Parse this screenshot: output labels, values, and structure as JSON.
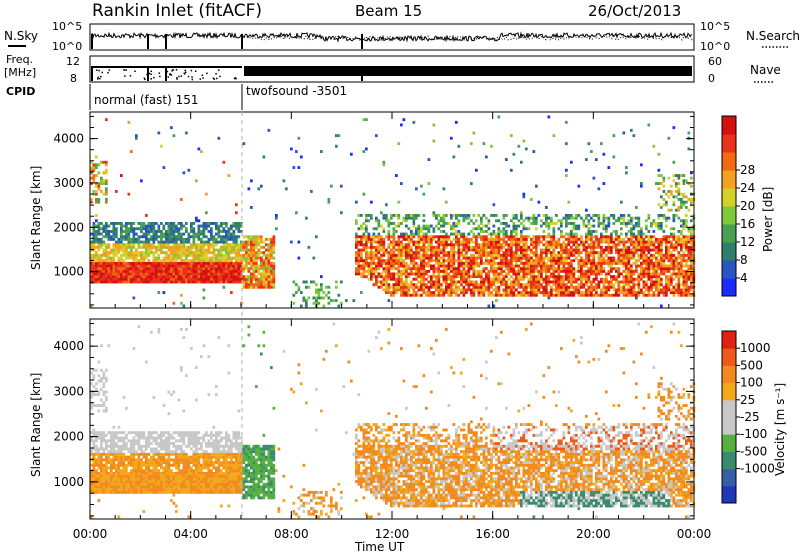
{
  "header": {
    "station": "Rankin Inlet (fitACF)",
    "beam": "Beam 15",
    "date": "26/Oct/2013"
  },
  "strip": {
    "left_top_label": "N.Sky",
    "left_mid_label_1": "Freq.",
    "left_mid_label_2": "[MHz]",
    "left_bottom_label": "CPID",
    "right_top_label": "N.Search",
    "right_mid_label": "Nave",
    "sky_ticks": [
      "10^5",
      "10^0"
    ],
    "freq_ticks": [
      "12",
      "8"
    ],
    "nave_ticks": [
      "60",
      "0"
    ],
    "cpid_modes": [
      "normal (fast) 151",
      "twofsound -3501"
    ]
  },
  "x_axis": {
    "label": "Time UT",
    "ticks": [
      "00:00",
      "04:00",
      "08:00",
      "12:00",
      "16:00",
      "20:00",
      "00:00"
    ]
  },
  "chart_data": [
    {
      "type": "heatmap",
      "quantity": "power",
      "ylabel": "Slant Range [km]",
      "yticks": [
        1000,
        2000,
        3000,
        4000
      ],
      "ylim": [
        180,
        4600
      ],
      "xlim_hours": [
        0,
        24
      ],
      "colorbar_label": "Power [dB]",
      "colorbar_ticks": [
        4,
        8,
        12,
        16,
        20,
        24,
        28
      ],
      "colorbar_colors": [
        "#1b2cff",
        "#2a55c0",
        "#2f7f6a",
        "#48a050",
        "#7ec83a",
        "#d6d02a",
        "#f4a020",
        "#f26a12",
        "#e8321a",
        "#d41010"
      ]
    },
    {
      "type": "heatmap",
      "quantity": "velocity",
      "ylabel": "Slant Range [km]",
      "yticks": [
        1000,
        2000,
        3000,
        4000
      ],
      "ylim": [
        180,
        4600
      ],
      "xlim_hours": [
        0,
        24
      ],
      "colorbar_label": "Velocity [m s⁻¹]",
      "colorbar_ticks": [
        1000,
        500,
        100,
        25,
        -25,
        -100,
        -500,
        -1000
      ],
      "colorbar_colors": [
        "#2038b8",
        "#3560a8",
        "#3a8a70",
        "#56b040",
        "#c8c8c8",
        "#c8c8c8",
        "#f2a818",
        "#f28a20",
        "#ee5a18",
        "#e02010"
      ]
    }
  ]
}
